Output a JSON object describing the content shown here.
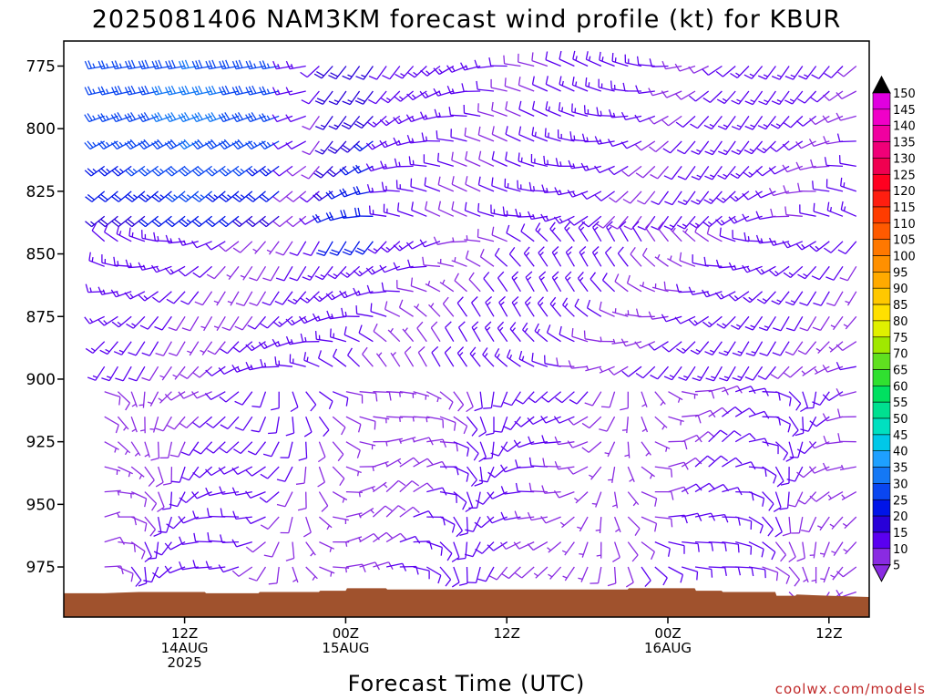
{
  "chart_data": {
    "type": "wind-barb-profile",
    "title": "2025081406 NAM3KM forecast wind profile (kt) for KBUR",
    "xlabel": "Forecast Time (UTC)",
    "ylabel": "",
    "y_axis": {
      "range": [
        765,
        995
      ],
      "inverted": true,
      "ticks": [
        775,
        800,
        825,
        850,
        875,
        900,
        925,
        950,
        975
      ]
    },
    "x_axis": {
      "range_hours": [
        -3,
        57
      ],
      "ticks": [
        {
          "hour": 6,
          "lines": [
            "12Z",
            "14AUG",
            "2025"
          ]
        },
        {
          "hour": 18,
          "lines": [
            "00Z",
            "15AUG"
          ]
        },
        {
          "hour": 30,
          "lines": [
            "12Z"
          ]
        },
        {
          "hour": 42,
          "lines": [
            "00Z",
            "16AUG"
          ]
        },
        {
          "hour": 54,
          "lines": [
            "12Z"
          ]
        }
      ]
    },
    "barb_levels_hpa": [
      775,
      785,
      795,
      805,
      815,
      825,
      835,
      845,
      855,
      865,
      875,
      885,
      895,
      905,
      915,
      925,
      935,
      945,
      955,
      965,
      975,
      985
    ],
    "barb_hours": [
      0,
      1,
      2,
      3,
      4,
      5,
      6,
      7,
      8,
      9,
      10,
      11,
      12,
      13,
      14,
      15,
      16,
      17,
      18,
      19,
      20,
      21,
      22,
      23,
      24,
      25,
      26,
      27,
      28,
      29,
      30,
      31,
      32,
      33,
      34,
      35,
      36,
      37,
      38,
      39,
      40,
      41,
      42,
      43,
      44,
      45,
      46,
      47,
      48,
      49,
      50,
      51,
      52,
      53,
      54,
      55,
      56
    ],
    "terrain_surface_hpa": [
      [
        -3,
        985.5
      ],
      [
        0,
        985.5
      ],
      [
        2.6,
        985
      ],
      [
        7.5,
        985
      ],
      [
        7.6,
        985.5
      ],
      [
        11.5,
        985.5
      ],
      [
        11.6,
        985
      ],
      [
        16,
        985
      ],
      [
        16.1,
        984.5
      ],
      [
        18,
        984.5
      ],
      [
        18.1,
        983.5
      ],
      [
        21,
        983.5
      ],
      [
        21.1,
        984
      ],
      [
        39,
        984
      ],
      [
        39.1,
        983.5
      ],
      [
        44,
        983.5
      ],
      [
        44.1,
        984.5
      ],
      [
        46,
        984.5
      ],
      [
        46.1,
        985
      ],
      [
        50,
        985
      ],
      [
        50.1,
        986.5
      ],
      [
        51.5,
        986.5
      ],
      [
        51.6,
        986
      ],
      [
        54,
        986.5
      ],
      [
        57,
        987
      ]
    ],
    "colorbar": {
      "unit": "kt",
      "labels": [
        5,
        10,
        15,
        20,
        25,
        30,
        35,
        40,
        45,
        50,
        55,
        60,
        65,
        70,
        75,
        80,
        85,
        90,
        95,
        100,
        105,
        110,
        115,
        120,
        125,
        130,
        135,
        140,
        145,
        150
      ],
      "colors": [
        "#8a2be2",
        "#5a00f0",
        "#2800d8",
        "#0014e8",
        "#0a46f0",
        "#1478f5",
        "#1ea0ff",
        "#00c8e8",
        "#00e0c0",
        "#00e090",
        "#00e060",
        "#30e030",
        "#60e020",
        "#a0e800",
        "#e0f000",
        "#ffe000",
        "#ffc800",
        "#ffaa00",
        "#ff9000",
        "#ff7800",
        "#ff5a00",
        "#ff3c00",
        "#ff1e10",
        "#ff0020",
        "#f00050",
        "#f00078",
        "#f000a0",
        "#f000c8",
        "#e000e0"
      ]
    },
    "terrain_color": "#a0522d",
    "credit": "coolwx.com/models"
  }
}
